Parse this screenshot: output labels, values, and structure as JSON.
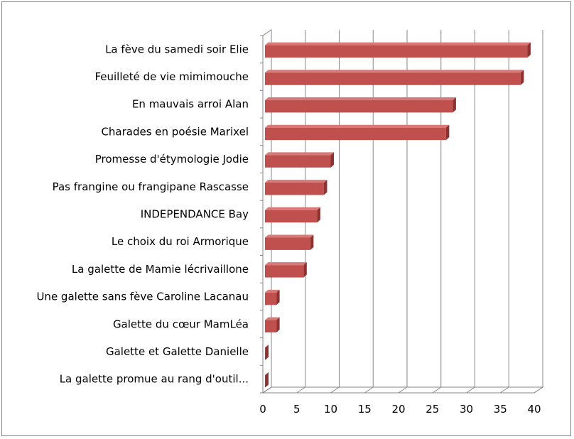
{
  "chart_data": {
    "type": "bar",
    "orientation": "horizontal",
    "style": "3d",
    "categories": [
      "La fève du samedi soir Elie",
      "Feuilleté de vie mimimouche",
      "En mauvais arroi Alan",
      "Charades en poésie Marixel",
      "Promesse d'étymologie Jodie",
      "Pas frangine ou frangipane  Rascasse",
      "INDEPENDANCE Bay",
      "Le choix du roi Armorique",
      "La galette de Mamie lécrivaillone",
      "Une galette sans fève Caroline Lacanau",
      "Galette du cœur MamLéa",
      "Galette et Galette Danielle",
      "La galette promue au rang d'outil..."
    ],
    "values": [
      39,
      38,
      28,
      27,
      10,
      9,
      8,
      7,
      6,
      2,
      2,
      0,
      0
    ],
    "xlim": [
      0,
      40
    ],
    "xticks": [
      "0",
      "5",
      "10",
      "15",
      "20",
      "25",
      "30",
      "35",
      "40"
    ],
    "grid": true,
    "legend": "none",
    "title": "",
    "xlabel": "",
    "ylabel": ""
  },
  "colors": {
    "bar_front": "#c0504d",
    "bar_top": "#d77a77",
    "bar_side": "#8c3230",
    "gridline": "#868686",
    "frame_border": "#868686",
    "floor": "#d9d9d9"
  }
}
